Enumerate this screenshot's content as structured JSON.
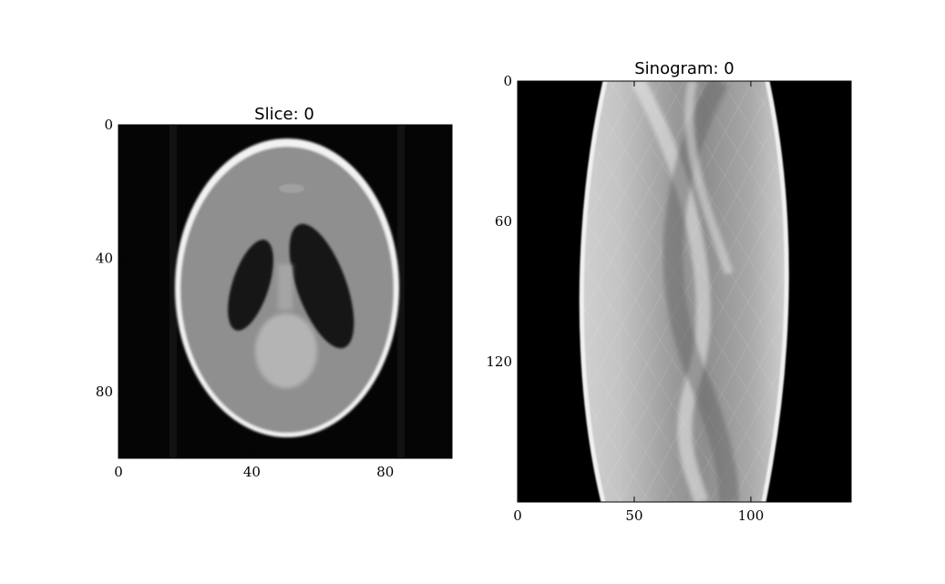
{
  "figure": {
    "background": "#ffffff"
  },
  "chart_data": [
    {
      "type": "heatmap",
      "title": "Slice: 0",
      "xlabel": "",
      "ylabel": "",
      "xlim": [
        0,
        100
      ],
      "ylim": [
        100,
        0
      ],
      "xticks": [
        0,
        40,
        80
      ],
      "yticks": [
        0,
        40,
        80
      ],
      "colormap": "gray",
      "content": "Shepp-Logan phantom reconstruction",
      "grid": false
    },
    {
      "type": "heatmap",
      "title": "Sinogram: 0",
      "xlabel": "",
      "ylabel": "",
      "xlim": [
        0,
        143
      ],
      "ylim": [
        180,
        0
      ],
      "xticks": [
        0,
        50,
        100
      ],
      "yticks": [
        0,
        60,
        120
      ],
      "colormap": "gray",
      "content": "Sinogram of the phantom",
      "grid": false
    }
  ]
}
